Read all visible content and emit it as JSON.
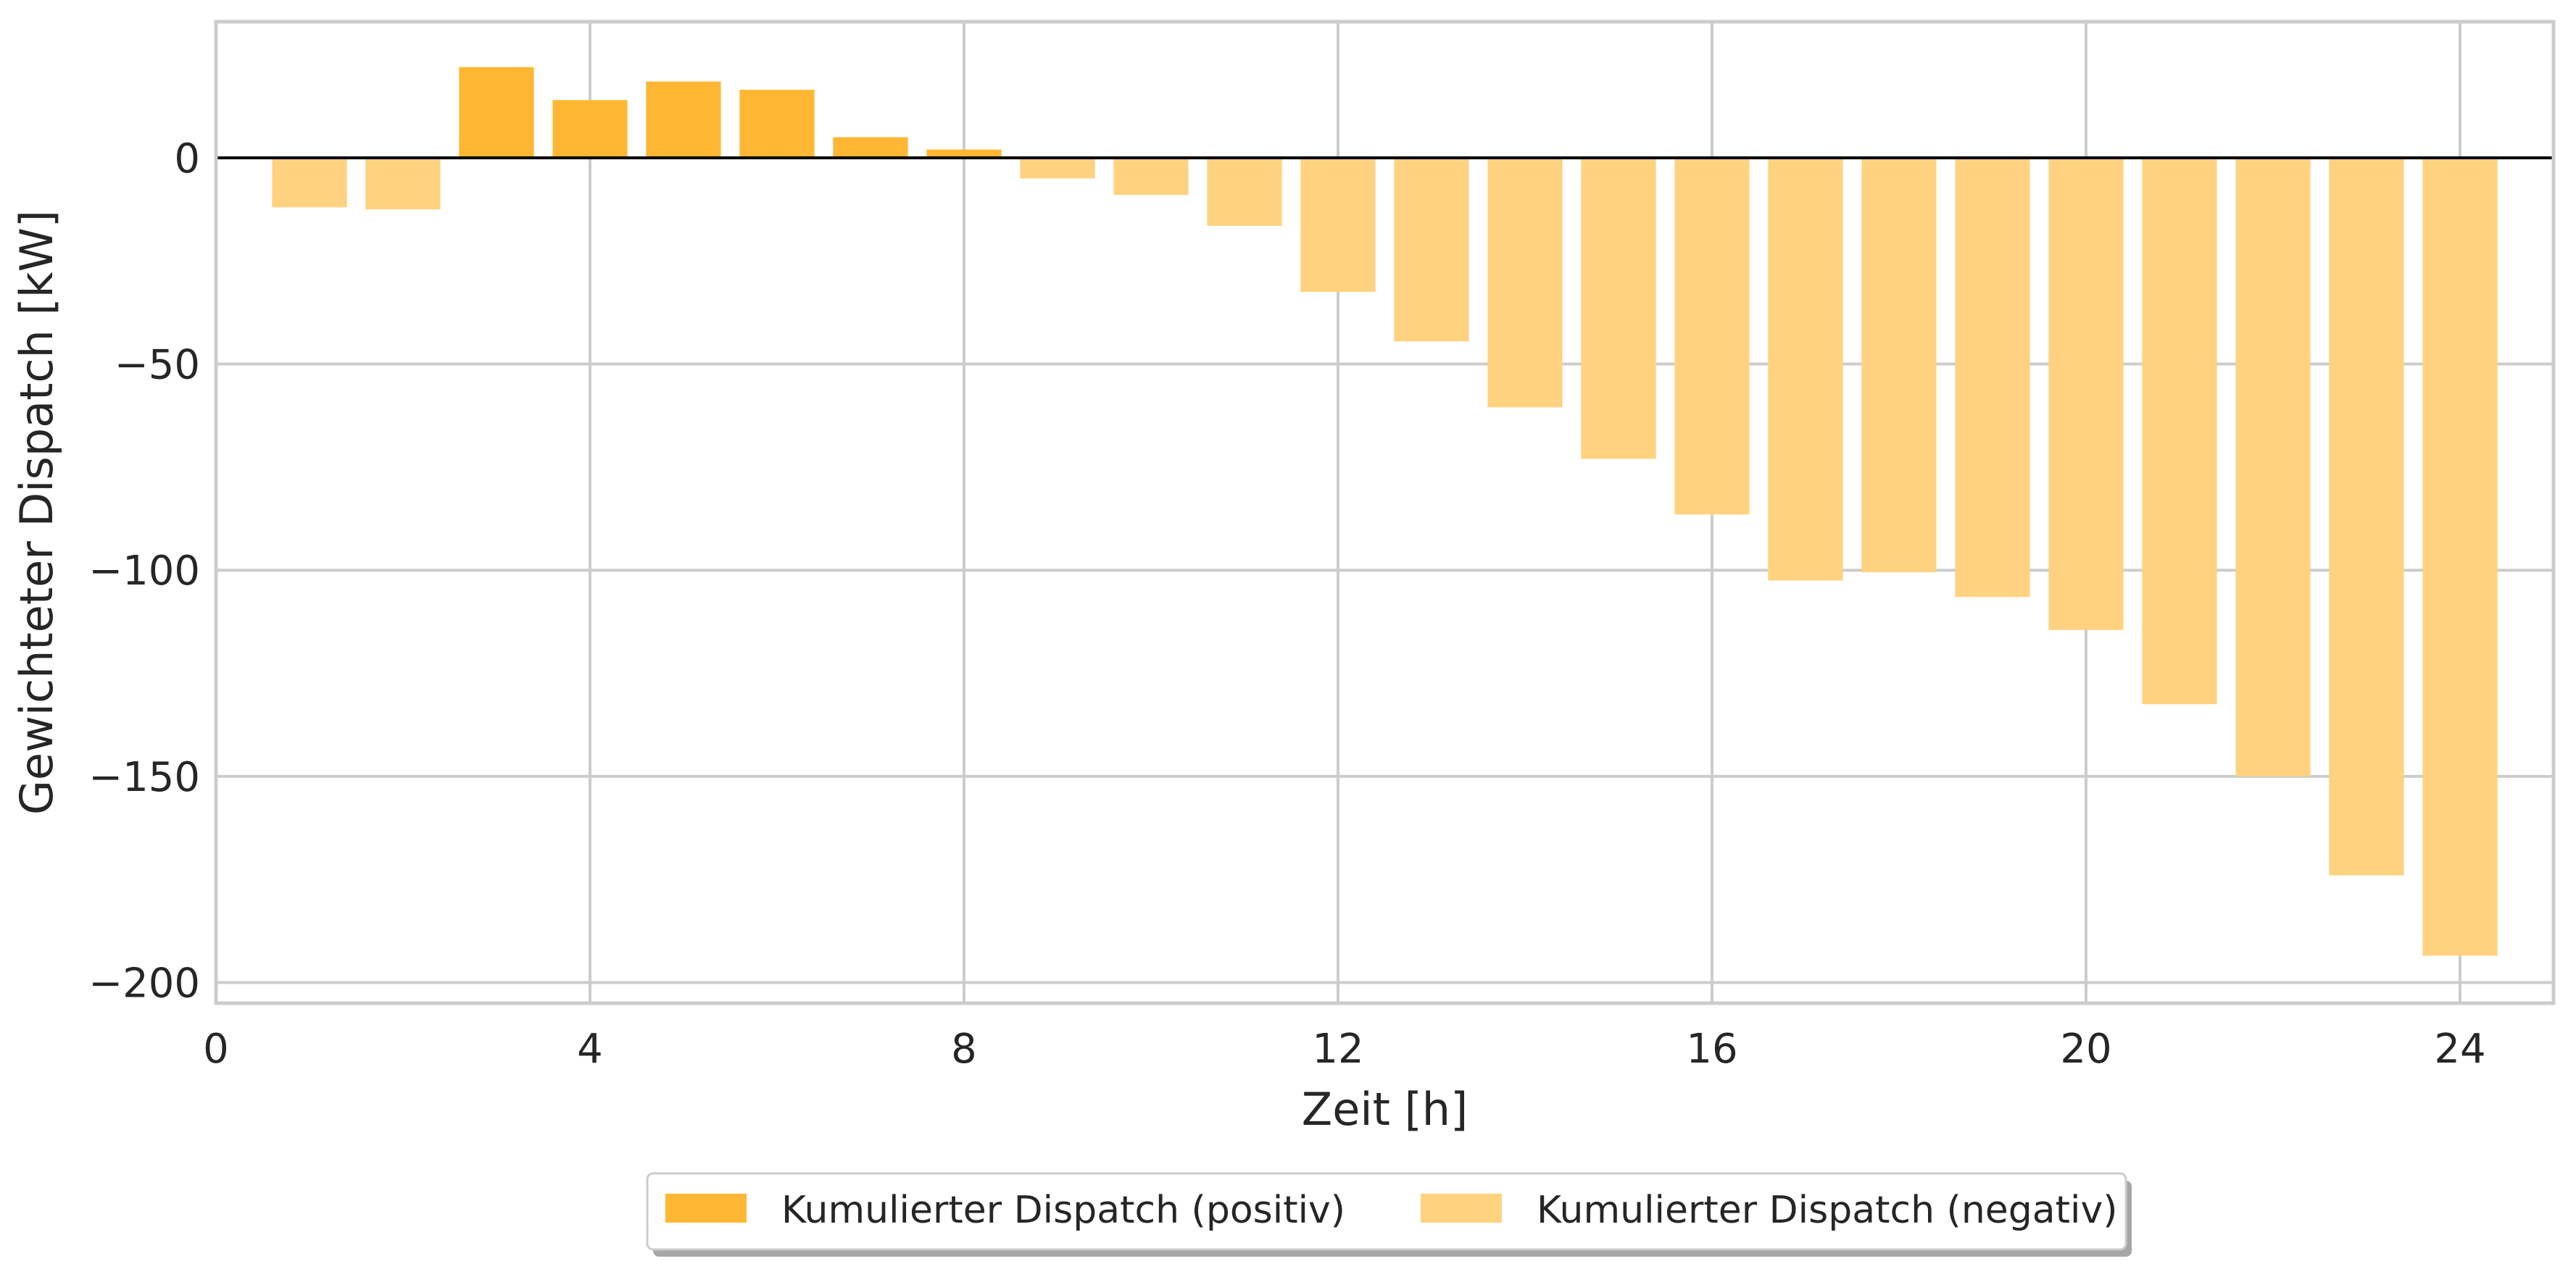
{
  "chart_data": {
    "type": "bar",
    "title": "",
    "xlabel": "Zeit [h]",
    "ylabel": "Gewichteter Dispatch [kW]",
    "xlim": [
      0,
      25
    ],
    "ylim": [
      -205,
      33
    ],
    "xticks": [
      0,
      4,
      8,
      12,
      16,
      20,
      24
    ],
    "yticks": [
      0,
      -50,
      -100,
      -150,
      -200
    ],
    "ytick_labels": [
      "0",
      "−50",
      "−100",
      "−150",
      "−200"
    ],
    "grid": true,
    "zero_line": true,
    "legend_position": "bottom-center",
    "x": [
      1,
      2,
      3,
      4,
      5,
      6,
      7,
      8,
      9,
      10,
      11,
      12,
      13,
      14,
      15,
      16,
      17,
      18,
      19,
      20,
      21,
      22,
      23,
      24
    ],
    "series": [
      {
        "name": "Kumulierter Dispatch (positiv)",
        "color": "#FFB733",
        "values": [
          0,
          0,
          22,
          14,
          18.5,
          16.5,
          5,
          2,
          0,
          0,
          0,
          0,
          0,
          0,
          0,
          0,
          0,
          0,
          0,
          0,
          0,
          0,
          0,
          0
        ]
      },
      {
        "name": "Kumulierter Dispatch (negativ)",
        "color": "#FFD27F",
        "values": [
          -12,
          -12.5,
          0,
          0,
          0,
          0,
          0,
          0,
          -5,
          -9,
          -16.5,
          -32.5,
          -44.5,
          -60.5,
          -73,
          -86.5,
          -102.5,
          -100.5,
          -106.5,
          -114.5,
          -132.5,
          -150,
          -174,
          -193.5
        ]
      }
    ]
  }
}
